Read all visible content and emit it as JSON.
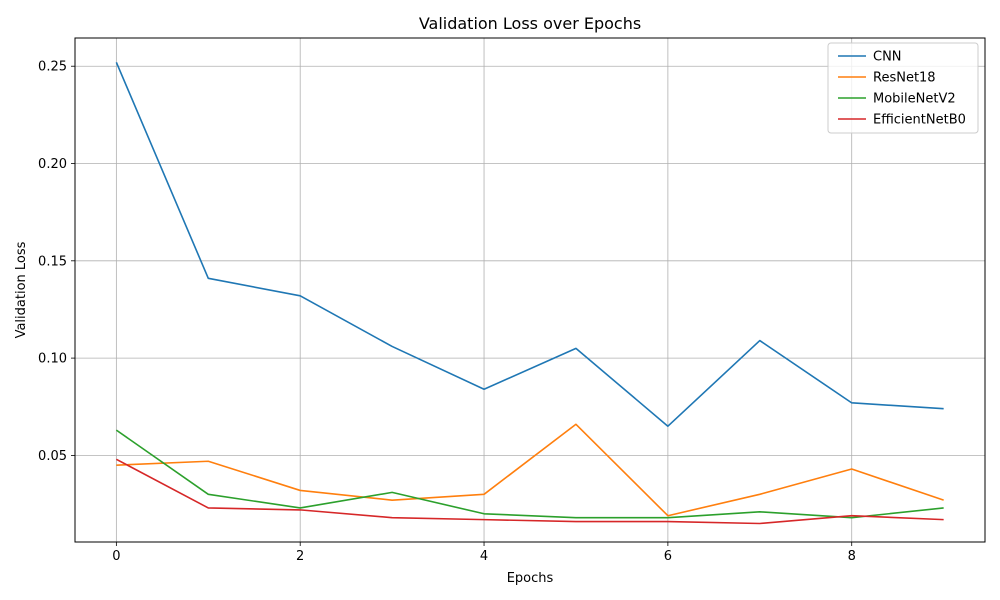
{
  "chart_data": {
    "type": "line",
    "title": "Validation Loss over Epochs",
    "xlabel": "Epochs",
    "ylabel": "Validation Loss",
    "x": [
      0,
      1,
      2,
      3,
      4,
      5,
      6,
      7,
      8,
      9
    ],
    "xlim": [
      -0.45,
      9.45
    ],
    "ylim": [
      0.0055,
      0.2645
    ],
    "xticks": [
      0,
      2,
      4,
      6,
      8
    ],
    "yticks": [
      0.05,
      0.1,
      0.15,
      0.2,
      0.25
    ],
    "xtick_labels": [
      "0",
      "2",
      "4",
      "6",
      "8"
    ],
    "ytick_labels": [
      "0.05",
      "0.10",
      "0.15",
      "0.20",
      "0.25"
    ],
    "grid": true,
    "legend_position": "top-right",
    "series": [
      {
        "name": "CNN",
        "color": "#1f77b4",
        "values": [
          0.252,
          0.141,
          0.132,
          0.106,
          0.084,
          0.105,
          0.065,
          0.109,
          0.077,
          0.074
        ]
      },
      {
        "name": "ResNet18",
        "color": "#ff7f0e",
        "values": [
          0.045,
          0.047,
          0.032,
          0.027,
          0.03,
          0.066,
          0.019,
          0.03,
          0.043,
          0.027
        ]
      },
      {
        "name": "MobileNetV2",
        "color": "#2ca02c",
        "values": [
          0.063,
          0.03,
          0.023,
          0.031,
          0.02,
          0.018,
          0.018,
          0.021,
          0.018,
          0.023
        ]
      },
      {
        "name": "EfficientNetB0",
        "color": "#d62728",
        "values": [
          0.048,
          0.023,
          0.022,
          0.018,
          0.017,
          0.016,
          0.016,
          0.015,
          0.019,
          0.017
        ]
      }
    ]
  }
}
